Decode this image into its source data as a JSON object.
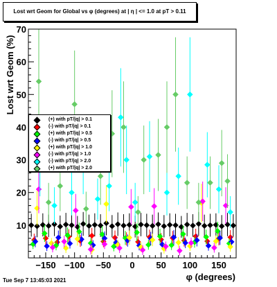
{
  "header": {
    "title": "Lost wrt Geom for Global vs φ (degrees) at |  η | <= 1.0 at pT > 0.11"
  },
  "footer": {
    "timestamp": "Tue Sep  7 13:45:03 2021"
  },
  "chart_data": {
    "type": "scatter",
    "title": "Lost wrt Geom for Global vs φ (degrees) at |  η | <= 1.0 at pT > 0.11",
    "xlabel": "φ (degrees)",
    "ylabel": "Lost wrt Geom (%)",
    "xlim": [
      -180,
      180
    ],
    "ylim": [
      0,
      70
    ],
    "xticks": [
      -150,
      -100,
      -50,
      0,
      50,
      100,
      150
    ],
    "yticks": [
      10,
      20,
      30,
      40,
      50,
      60,
      70
    ],
    "grid": false,
    "legend_position": "left",
    "series": [
      {
        "name": "(+) with pT/|q| > 0.1",
        "color": "#000000",
        "x": [
          -175,
          -165,
          -155,
          -145,
          -135,
          -125,
          -115,
          -105,
          -95,
          -85,
          -75,
          -65,
          -55,
          -45,
          -35,
          -25,
          -15,
          -5,
          5,
          15,
          25,
          35,
          45,
          55,
          65,
          75,
          85,
          95,
          105,
          115,
          125,
          135,
          145,
          155,
          165,
          175
        ],
        "y": [
          10.0,
          9.7,
          10.1,
          9.8,
          10.3,
          9.6,
          10.2,
          10.0,
          9.5,
          10.4,
          9.8,
          10.1,
          9.9,
          10.6,
          9.7,
          10.3,
          9.9,
          10.1,
          9.6,
          10.2,
          10.0,
          9.8,
          10.3,
          9.7,
          10.1,
          10.0,
          9.5,
          10.2,
          9.9,
          10.4,
          9.8,
          10.0,
          10.1,
          9.7,
          10.2,
          9.9
        ]
      },
      {
        "name": "(-) with pT/|q| > 0.1",
        "color": "#ff0000",
        "x": [
          -170,
          -150,
          -130,
          -110,
          -90,
          -70,
          -50,
          -30,
          -10,
          10,
          30,
          50,
          70,
          90,
          110,
          130,
          150,
          170
        ],
        "y": [
          5.5,
          6.0,
          4.8,
          6.5,
          5.2,
          6.8,
          5.0,
          6.2,
          5.8,
          4.9,
          6.4,
          5.6,
          6.1,
          5.3,
          6.6,
          5.1,
          5.9,
          6.3
        ]
      },
      {
        "name": "(+) with pT/|q| > 0.5",
        "color": "#00ff00",
        "x": [
          -172,
          -152,
          -132,
          -112,
          -92,
          -72,
          -52,
          -32,
          -12,
          8,
          28,
          48,
          68,
          88,
          108,
          128,
          148,
          168
        ],
        "y": [
          4.2,
          7.5,
          3.8,
          6.9,
          8.0,
          4.5,
          7.2,
          3.5,
          6.1,
          7.8,
          4.0,
          6.6,
          3.9,
          7.3,
          4.8,
          6.4,
          8.2,
          4.4
        ]
      },
      {
        "name": "(-) with pT/|q| > 0.5",
        "color": "#0000ff",
        "x": [
          -168,
          -148,
          -128,
          -108,
          -88,
          -68,
          -48,
          -28,
          -8,
          12,
          32,
          52,
          72,
          92,
          112,
          132,
          152,
          172
        ],
        "y": [
          5.0,
          3.6,
          6.2,
          4.4,
          5.7,
          3.9,
          6.0,
          4.7,
          5.3,
          3.8,
          5.9,
          4.1,
          6.3,
          4.6,
          5.4,
          3.7,
          6.1,
          4.9
        ]
      },
      {
        "name": "(+) with pT/|q| > 1.0",
        "color": "#ffff00",
        "x": [
          -165,
          -140,
          -115,
          -95,
          -70,
          -45,
          -25,
          -5,
          15,
          35,
          55,
          80,
          100,
          120,
          145,
          170
        ],
        "y": [
          15.2,
          4.5,
          3.0,
          5.8,
          2.5,
          16.5,
          4.0,
          6.2,
          3.3,
          5.5,
          2.8,
          4.7,
          3.6,
          16.8,
          5.1,
          3.4
        ]
      },
      {
        "name": "(-) with pT/|q| > 1.0",
        "color": "#ff00ff",
        "x": [
          -162,
          -138,
          -118,
          -98,
          -72,
          -48,
          -22,
          -2,
          18,
          38,
          58,
          82,
          102,
          122,
          142,
          162
        ],
        "y": [
          21.0,
          3.2,
          5.0,
          14.5,
          2.6,
          4.2,
          3.0,
          15.6,
          2.4,
          15.8,
          3.5,
          2.2,
          4.6,
          17.3,
          3.1,
          16.0
        ]
      },
      {
        "name": "(-) with pT/|q| > 2.0",
        "color": "#00ffff",
        "x": [
          -160,
          -135,
          -105,
          -85,
          -60,
          -40,
          -20,
          -10,
          5,
          30,
          60,
          80,
          100,
          130,
          150,
          170
        ],
        "y": [
          29.0,
          16.0,
          20.0,
          30.0,
          18.0,
          22.0,
          43.0,
          30.0,
          17.0,
          31.0,
          20.0,
          25.0,
          50.0,
          28.5,
          21.0,
          14.0
        ]
      },
      {
        "name": "(+) with pT/|q| > 2.0",
        "color": "#66cc66",
        "x": [
          -162,
          -145,
          -125,
          -100,
          -80,
          -55,
          -35,
          -15,
          10,
          20,
          45,
          60,
          75,
          95,
          115,
          135,
          155,
          165
        ],
        "y": [
          54.0,
          17.0,
          22.0,
          47.0,
          15.0,
          25.0,
          38.0,
          40.0,
          14.0,
          30.0,
          31.5,
          40.0,
          50.0,
          23.0,
          17.0,
          23.0,
          29.0,
          23.5
        ]
      }
    ]
  }
}
